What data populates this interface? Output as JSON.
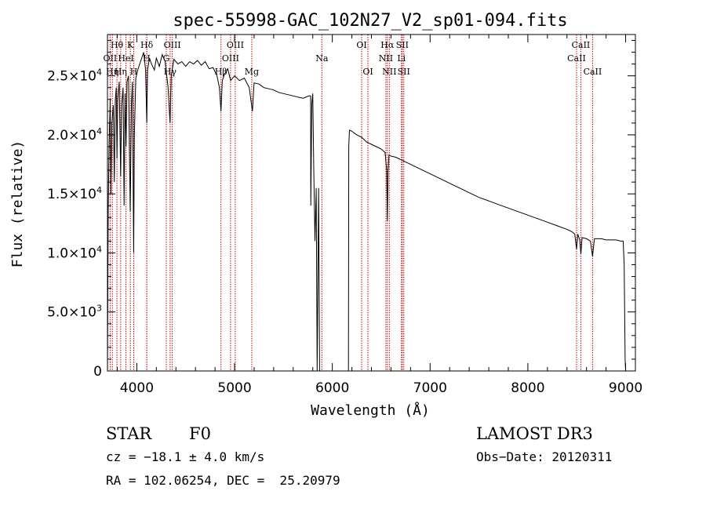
{
  "chart_data": {
    "type": "line",
    "title": "spec-55998-GAC_102N27_V2_sp01-094.fits",
    "xlabel": "Wavelength (Å)",
    "ylabel": "Flux (relative)",
    "xlim": [
      3700,
      9100
    ],
    "ylim": [
      0,
      28500
    ],
    "x_ticks": [
      {
        "value": 4000,
        "label": "4000"
      },
      {
        "value": 5000,
        "label": "5000"
      },
      {
        "value": 6000,
        "label": "6000"
      },
      {
        "value": 7000,
        "label": "7000"
      },
      {
        "value": 8000,
        "label": "8000"
      },
      {
        "value": 9000,
        "label": "9000"
      }
    ],
    "y_ticks": [
      {
        "value": 0,
        "mant": "0",
        "exp": ""
      },
      {
        "value": 5000,
        "mant": "5.0×10",
        "exp": "3"
      },
      {
        "value": 10000,
        "mant": "1.0×10",
        "exp": "4"
      },
      {
        "value": 15000,
        "mant": "1.5×10",
        "exp": "4"
      },
      {
        "value": 20000,
        "mant": "2.0×10",
        "exp": "4"
      },
      {
        "value": 25000,
        "mant": "2.5×10",
        "exp": "4"
      }
    ],
    "series": [
      {
        "name": "spectrum",
        "points": [
          [
            3700,
            0
          ],
          [
            3708,
            14000
          ],
          [
            3718,
            19500
          ],
          [
            3728,
            23000
          ],
          [
            3735,
            15000
          ],
          [
            3745,
            21000
          ],
          [
            3760,
            22500
          ],
          [
            3770,
            16000
          ],
          [
            3780,
            23000
          ],
          [
            3790,
            24000
          ],
          [
            3797,
            18000
          ],
          [
            3805,
            23000
          ],
          [
            3820,
            24500
          ],
          [
            3835,
            16500
          ],
          [
            3845,
            22500
          ],
          [
            3860,
            24000
          ],
          [
            3870,
            14000
          ],
          [
            3880,
            23500
          ],
          [
            3890,
            19000
          ],
          [
            3900,
            24500
          ],
          [
            3915,
            25000
          ],
          [
            3933,
            13500
          ],
          [
            3945,
            22500
          ],
          [
            3955,
            24500
          ],
          [
            3968,
            10000
          ],
          [
            3975,
            20000
          ],
          [
            3990,
            24800
          ],
          [
            4010,
            25500
          ],
          [
            4030,
            26000
          ],
          [
            4050,
            26500
          ],
          [
            4070,
            27000
          ],
          [
            4090,
            25500
          ],
          [
            4102,
            21000
          ],
          [
            4110,
            25500
          ],
          [
            4130,
            26500
          ],
          [
            4150,
            26000
          ],
          [
            4180,
            25500
          ],
          [
            4200,
            26500
          ],
          [
            4230,
            25800
          ],
          [
            4260,
            26800
          ],
          [
            4290,
            26200
          ],
          [
            4320,
            24000
          ],
          [
            4340,
            21000
          ],
          [
            4352,
            25000
          ],
          [
            4380,
            26400
          ],
          [
            4420,
            26000
          ],
          [
            4460,
            26200
          ],
          [
            4500,
            25800
          ],
          [
            4540,
            26200
          ],
          [
            4580,
            26000
          ],
          [
            4620,
            26300
          ],
          [
            4660,
            25900
          ],
          [
            4700,
            26200
          ],
          [
            4740,
            25600
          ],
          [
            4780,
            25700
          ],
          [
            4820,
            25000
          ],
          [
            4845,
            24000
          ],
          [
            4861,
            22000
          ],
          [
            4875,
            24600
          ],
          [
            4900,
            25200
          ],
          [
            4930,
            25600
          ],
          [
            4960,
            24600
          ],
          [
            5000,
            25000
          ],
          [
            5050,
            24600
          ],
          [
            5100,
            24800
          ],
          [
            5150,
            24000
          ],
          [
            5183,
            22000
          ],
          [
            5200,
            24400
          ],
          [
            5250,
            24300
          ],
          [
            5300,
            24000
          ],
          [
            5350,
            23900
          ],
          [
            5400,
            23800
          ],
          [
            5450,
            23600
          ],
          [
            5500,
            23500
          ],
          [
            5550,
            23400
          ],
          [
            5600,
            23300
          ],
          [
            5650,
            23200
          ],
          [
            5700,
            23100
          ],
          [
            5760,
            23300
          ],
          [
            5778,
            23300
          ],
          [
            5780,
            14000
          ],
          [
            5790,
            22600
          ],
          [
            5800,
            23500
          ],
          [
            5810,
            17000
          ],
          [
            5822,
            11000
          ],
          [
            5835,
            15500
          ],
          [
            5845,
            0
          ],
          [
            5860,
            15500
          ],
          [
            5870,
            0
          ],
          [
            5890,
            0
          ],
          [
            6150,
            0
          ],
          [
            6165,
            0
          ],
          [
            6168,
            19000
          ],
          [
            6175,
            20400
          ],
          [
            6200,
            20300
          ],
          [
            6250,
            20000
          ],
          [
            6300,
            19800
          ],
          [
            6350,
            19400
          ],
          [
            6400,
            19200
          ],
          [
            6450,
            19000
          ],
          [
            6500,
            18800
          ],
          [
            6540,
            18500
          ],
          [
            6556,
            17000
          ],
          [
            6563,
            12700
          ],
          [
            6570,
            17000
          ],
          [
            6580,
            18300
          ],
          [
            6600,
            18200
          ],
          [
            6650,
            18100
          ],
          [
            6700,
            17900
          ],
          [
            6800,
            17500
          ],
          [
            6900,
            17100
          ],
          [
            7000,
            16700
          ],
          [
            7100,
            16300
          ],
          [
            7200,
            15900
          ],
          [
            7300,
            15500
          ],
          [
            7400,
            15100
          ],
          [
            7500,
            14700
          ],
          [
            7600,
            14400
          ],
          [
            7700,
            14100
          ],
          [
            7800,
            13800
          ],
          [
            7900,
            13500
          ],
          [
            8000,
            13200
          ],
          [
            8100,
            12900
          ],
          [
            8200,
            12600
          ],
          [
            8300,
            12300
          ],
          [
            8400,
            12000
          ],
          [
            8450,
            11800
          ],
          [
            8480,
            11600
          ],
          [
            8498,
            10300
          ],
          [
            8510,
            11600
          ],
          [
            8530,
            11100
          ],
          [
            8542,
            9900
          ],
          [
            8555,
            11300
          ],
          [
            8600,
            11200
          ],
          [
            8640,
            11000
          ],
          [
            8662,
            9700
          ],
          [
            8680,
            11200
          ],
          [
            8750,
            11200
          ],
          [
            8800,
            11100
          ],
          [
            8850,
            11100
          ],
          [
            8900,
            11100
          ],
          [
            8950,
            11000
          ],
          [
            8975,
            11000
          ],
          [
            8985,
            9000
          ],
          [
            8995,
            1000
          ],
          [
            9000,
            0
          ]
        ]
      }
    ],
    "reference_lines": [
      {
        "wl": 3727,
        "label": "OII",
        "row": 2
      },
      {
        "wl": 3750,
        "label": "Hη",
        "row": 3
      },
      {
        "wl": 3797,
        "label": "Hθ",
        "row": 1
      },
      {
        "wl": 3835,
        "label": "Hη",
        "row": 3
      },
      {
        "wl": 3889,
        "label": "HeI",
        "row": 2
      },
      {
        "wl": 3934,
        "label": "K",
        "row": 1
      },
      {
        "wl": 3969,
        "label": "H",
        "row": 3
      },
      {
        "wl": 4102,
        "label": "Hδ",
        "row": 1
      },
      {
        "wl": 4102,
        "label": "H",
        "row": 2
      },
      {
        "wl": 4302,
        "label": "G",
        "row": 2
      },
      {
        "wl": 4341,
        "label": "Hγ",
        "row": 3
      },
      {
        "wl": 4363,
        "label": "OIII",
        "row": 1
      },
      {
        "wl": 4861,
        "label": "Hβ",
        "row": 3
      },
      {
        "wl": 4959,
        "label": "OIII",
        "row": 2
      },
      {
        "wl": 5007,
        "label": "OIII",
        "row": 1
      },
      {
        "wl": 5176,
        "label": "Mg",
        "row": 3
      },
      {
        "wl": 5893,
        "label": "Na",
        "row": 2
      },
      {
        "wl": 6300,
        "label": "OI",
        "row": 1
      },
      {
        "wl": 6364,
        "label": "OI",
        "row": 3
      },
      {
        "wl": 6548,
        "label": "NII",
        "row": 2
      },
      {
        "wl": 6563,
        "label": "Hα",
        "row": 1
      },
      {
        "wl": 6583,
        "label": "NII",
        "row": 3
      },
      {
        "wl": 6707,
        "label": "Li",
        "row": 2
      },
      {
        "wl": 6716,
        "label": "SII",
        "row": 1
      },
      {
        "wl": 6731,
        "label": "SII",
        "row": 3
      },
      {
        "wl": 8498,
        "label": "CaII",
        "row": 2
      },
      {
        "wl": 8542,
        "label": "CaII",
        "row": 1
      },
      {
        "wl": 8662,
        "label": "CaII",
        "row": 3
      }
    ]
  },
  "footer": {
    "object_type": "STAR",
    "subclass": "F0",
    "cz": "cz = −18.1 ± 4.0 km/s",
    "coords": "RA = 102.06254, DEC =  25.20979",
    "survey": "LAMOST DR3",
    "obs_date": "Obs−Date: 20120311"
  }
}
